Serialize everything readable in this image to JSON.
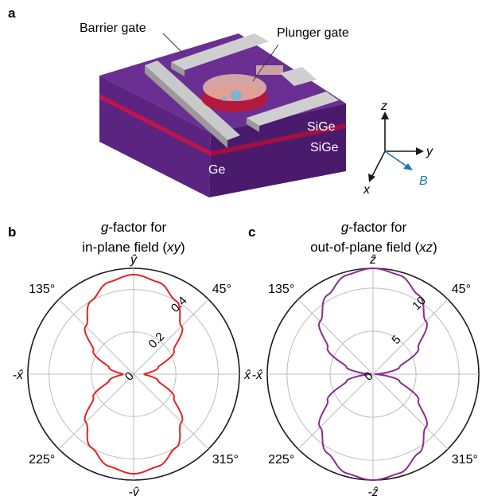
{
  "panel_a": {
    "label": "a",
    "labels": {
      "barrier_gate": "Barrier gate",
      "plunger_gate": "Plunger gate",
      "sige_top": "SiGe",
      "sige_bottom": "SiGe",
      "ge": "Ge"
    },
    "axes": {
      "z": "z",
      "y": "y",
      "x": "x",
      "B": "B"
    },
    "colors": {
      "substrate": "#5e2a86",
      "ge_layer": "#c0144c",
      "gate": "#c8c8c8",
      "field": "#1f77b4"
    }
  },
  "panels": [
    {
      "label": "b",
      "title_lines": [
        "g-factor for",
        "in-plane field (xy)"
      ],
      "title_italic_tokens": [
        "g",
        "xy"
      ],
      "axis_labels": {
        "top": "ŷ",
        "bottom": "-ŷ",
        "left": "-x̂",
        "right": "x̂"
      },
      "angle_labels": [
        "135°",
        "45°",
        "225°",
        "315°"
      ],
      "radial_tick_labels": [
        "0",
        "0.2",
        "0.4"
      ],
      "color": "#e02424"
    },
    {
      "label": "c",
      "title_lines": [
        "g-factor for",
        "out-of-plane field (xz)"
      ],
      "title_italic_tokens": [
        "g",
        "xz"
      ],
      "axis_labels": {
        "top": "ẑ",
        "bottom": "-ẑ",
        "left": "-x̂",
        "right": "x̂"
      },
      "angle_labels": [
        "135°",
        "45°",
        "225°",
        "315°"
      ],
      "radial_tick_labels": [
        "0",
        "5",
        "10"
      ],
      "color": "#8b2c8f"
    }
  ],
  "chart_data": [
    {
      "type": "polar-line",
      "panel": "b",
      "r_ticks": [
        0,
        0.2,
        0.4
      ],
      "r_max": 0.5,
      "theta_deg": [
        0,
        15,
        30,
        45,
        60,
        75,
        90,
        105,
        120,
        135,
        150,
        165,
        180,
        195,
        210,
        225,
        240,
        255,
        270,
        285,
        300,
        315,
        330,
        345,
        360
      ],
      "r": [
        0.05,
        0.12,
        0.22,
        0.32,
        0.4,
        0.45,
        0.47,
        0.45,
        0.4,
        0.32,
        0.22,
        0.12,
        0.05,
        0.12,
        0.22,
        0.32,
        0.4,
        0.45,
        0.47,
        0.45,
        0.4,
        0.32,
        0.22,
        0.12,
        0.05
      ]
    },
    {
      "type": "polar-line",
      "panel": "c",
      "r_ticks": [
        0,
        5,
        10
      ],
      "r_max": 12.3,
      "theta_deg": [
        0,
        15,
        30,
        45,
        60,
        75,
        90,
        105,
        120,
        135,
        150,
        165,
        180,
        195,
        210,
        225,
        240,
        255,
        270,
        285,
        300,
        315,
        330,
        345,
        360
      ],
      "r": [
        0.2,
        3.2,
        6.1,
        8.7,
        10.6,
        11.9,
        12.3,
        11.9,
        10.6,
        8.7,
        6.1,
        3.2,
        0.2,
        3.2,
        6.1,
        8.7,
        10.6,
        11.9,
        12.3,
        11.9,
        10.6,
        8.7,
        6.1,
        3.2,
        0.2
      ]
    }
  ]
}
